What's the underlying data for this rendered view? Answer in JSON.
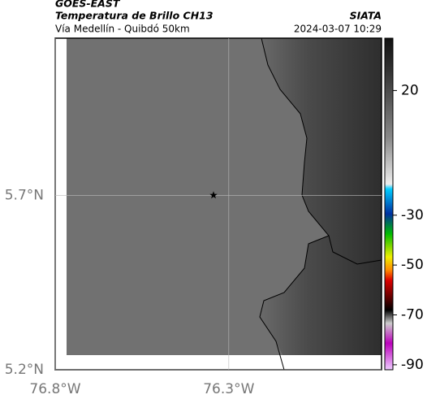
{
  "header": {
    "product": "GOES-EAST",
    "title": "Temperatura de Brillo CH13",
    "agency": "SIATA",
    "subtitle": "Vía Medellín - Quibdó 50km",
    "timestamp": "2024-03-07 10:29"
  },
  "map": {
    "xlim": [
      -76.8,
      -75.86
    ],
    "ylim": [
      5.2,
      6.15
    ],
    "xticks": [
      {
        "value": -76.8,
        "label": "76.8°W"
      },
      {
        "value": -76.3,
        "label": "76.3°W"
      }
    ],
    "yticks": [
      {
        "value": 5.2,
        "label": "5.2°N"
      },
      {
        "value": 5.7,
        "label": "5.7°N"
      }
    ],
    "marker": {
      "lon": -76.344,
      "lat": 5.7
    }
  },
  "colorbar": {
    "lim": [
      -92,
      41
    ],
    "ticks": [
      20,
      -30,
      -50,
      -70,
      -90
    ]
  }
}
